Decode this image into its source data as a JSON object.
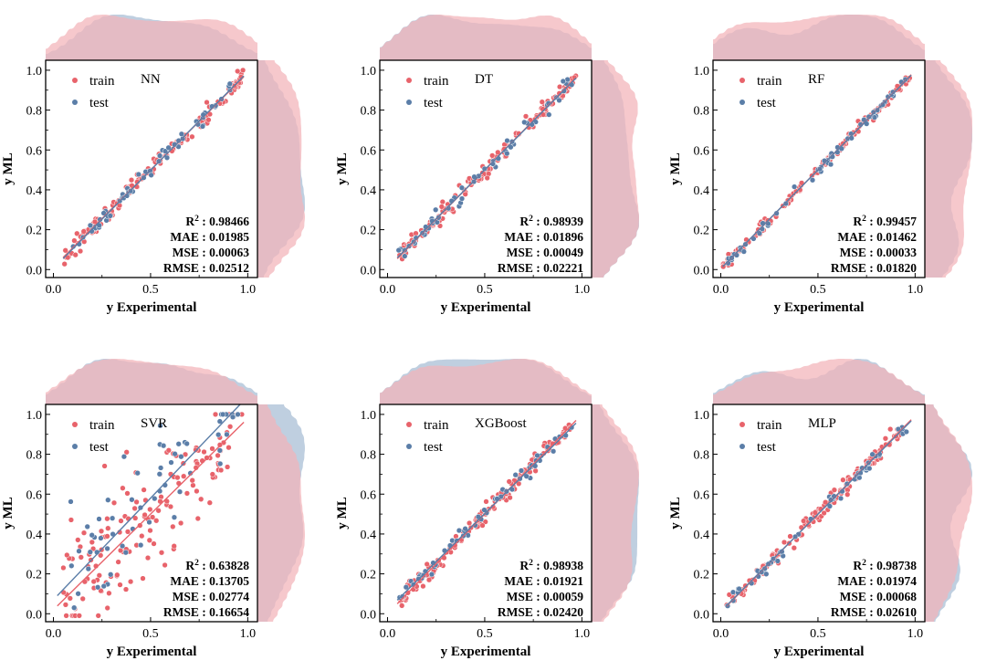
{
  "colors": {
    "train": "#e8636b",
    "test": "#5b7ea8",
    "train_fill": "#f2b3b8",
    "test_fill": "#a6bcd4",
    "overlap_fill": "#c3a3b6"
  },
  "legend": {
    "train": "train",
    "test": "test"
  },
  "axes_text": {
    "xlabel": "y Experimental",
    "ylabel": "y ML"
  },
  "chart_data": [
    {
      "type": "scatter",
      "model": "NN",
      "xlabel": "y Experimental",
      "ylabel": "y ML",
      "xlim": [
        -0.04,
        1.05
      ],
      "ylim": [
        -0.04,
        1.05
      ],
      "xticks": [
        "0.0",
        "0.5",
        "1.0"
      ],
      "yticks": [
        "0.0",
        "0.2",
        "0.4",
        "0.6",
        "0.8",
        "1.0"
      ],
      "legend_position": "top-left",
      "metrics": {
        "R2": "0.98466",
        "MAE": "0.01985",
        "MSE": "0.00063",
        "RMSE": "0.02512"
      },
      "fit": {
        "train": {
          "slope": 0.975,
          "intercept": 0.012
        },
        "test": {
          "slope": 0.985,
          "intercept": 0.006
        }
      },
      "series": [
        {
          "name": "train",
          "x_range": [
            0.05,
            0.98
          ],
          "scatter": 0.022,
          "n": 140
        },
        {
          "name": "test",
          "x_range": [
            0.08,
            0.92
          ],
          "scatter": 0.02,
          "n": 55
        }
      ]
    },
    {
      "type": "scatter",
      "model": "DT",
      "xlabel": "y Experimental",
      "ylabel": "y ML",
      "xlim": [
        -0.04,
        1.05
      ],
      "ylim": [
        -0.04,
        1.05
      ],
      "xticks": [
        "0.0",
        "0.5",
        "1.0"
      ],
      "yticks": [
        "0.0",
        "0.2",
        "0.4",
        "0.6",
        "0.8",
        "1.0"
      ],
      "legend_position": "top-left",
      "metrics": {
        "R2": "0.98939",
        "MAE": "0.01896",
        "MSE": "0.00049",
        "RMSE": "0.02221"
      },
      "fit": {
        "train": {
          "slope": 0.99,
          "intercept": 0.005
        },
        "test": {
          "slope": 0.98,
          "intercept": 0.01
        }
      },
      "series": [
        {
          "name": "train",
          "x_range": [
            0.06,
            0.97
          ],
          "scatter": 0.02,
          "n": 140
        },
        {
          "name": "test",
          "x_range": [
            0.05,
            0.96
          ],
          "scatter": 0.022,
          "n": 55
        }
      ]
    },
    {
      "type": "scatter",
      "model": "RF",
      "xlabel": "y Experimental",
      "ylabel": "y ML",
      "xlim": [
        -0.04,
        1.05
      ],
      "ylim": [
        -0.04,
        1.05
      ],
      "xticks": [
        "0.0",
        "0.5",
        "1.0"
      ],
      "yticks": [
        "0.0",
        "0.2",
        "0.4",
        "0.6",
        "0.8",
        "1.0"
      ],
      "legend_position": "top-left",
      "metrics": {
        "R2": "0.99457",
        "MAE": "0.01462",
        "MSE": "0.00033",
        "RMSE": "0.01820"
      },
      "fit": {
        "train": {
          "slope": 0.995,
          "intercept": 0.003
        },
        "test": {
          "slope": 0.99,
          "intercept": 0.005
        }
      },
      "series": [
        {
          "name": "train",
          "x_range": [
            0.01,
            0.98
          ],
          "scatter": 0.014,
          "n": 140
        },
        {
          "name": "test",
          "x_range": [
            0.03,
            0.96
          ],
          "scatter": 0.015,
          "n": 55
        }
      ]
    },
    {
      "type": "scatter",
      "model": "SVR",
      "xlabel": "y Experimental",
      "ylabel": "y ML",
      "xlim": [
        -0.04,
        1.05
      ],
      "ylim": [
        -0.04,
        1.05
      ],
      "xticks": [
        "0.0",
        "0.5",
        "1.0"
      ],
      "yticks": [
        "0.0",
        "0.2",
        "0.4",
        "0.6",
        "0.8",
        "1.0"
      ],
      "legend_position": "top-left",
      "metrics": {
        "R2": "0.63828",
        "MAE": "0.13705",
        "MSE": "0.02774",
        "RMSE": "0.16654"
      },
      "fit": {
        "train": {
          "slope": 0.96,
          "intercept": 0.02
        },
        "test": {
          "slope": 1.02,
          "intercept": 0.07
        }
      },
      "series": [
        {
          "name": "train",
          "x_range": [
            0.05,
            0.98
          ],
          "scatter": 0.16,
          "n": 150
        },
        {
          "name": "test",
          "x_range": [
            0.02,
            0.95
          ],
          "scatter": 0.15,
          "n": 60
        }
      ]
    },
    {
      "type": "scatter",
      "model": "XGBoost",
      "xlabel": "y Experimental",
      "ylabel": "y ML",
      "xlim": [
        -0.04,
        1.05
      ],
      "ylim": [
        -0.04,
        1.05
      ],
      "xticks": [
        "0.0",
        "0.5",
        "1.0"
      ],
      "yticks": [
        "0.0",
        "0.2",
        "0.4",
        "0.6",
        "0.8",
        "1.0"
      ],
      "legend_position": "top-left",
      "metrics": {
        "R2": "0.98938",
        "MAE": "0.01921",
        "MSE": "0.00059",
        "RMSE": "0.02420"
      },
      "fit": {
        "train": {
          "slope": 1.0,
          "intercept": 0.0
        },
        "test": {
          "slope": 0.965,
          "intercept": 0.02
        }
      },
      "series": [
        {
          "name": "train",
          "x_range": [
            0.05,
            0.97
          ],
          "scatter": 0.02,
          "n": 140
        },
        {
          "name": "test",
          "x_range": [
            0.05,
            0.95
          ],
          "scatter": 0.02,
          "n": 55
        }
      ]
    },
    {
      "type": "scatter",
      "model": "MLP",
      "xlabel": "y Experimental",
      "ylabel": "y ML",
      "xlim": [
        -0.04,
        1.05
      ],
      "ylim": [
        -0.04,
        1.05
      ],
      "xticks": [
        "0.0",
        "0.5",
        "1.0"
      ],
      "yticks": [
        "0.0",
        "0.2",
        "0.4",
        "0.6",
        "0.8",
        "1.0"
      ],
      "legend_position": "top-left",
      "metrics": {
        "R2": "0.98738",
        "MAE": "0.01974",
        "MSE": "0.00068",
        "RMSE": "0.02610"
      },
      "fit": {
        "train": {
          "slope": 0.985,
          "intercept": 0.008
        },
        "test": {
          "slope": 0.975,
          "intercept": 0.012
        }
      },
      "series": [
        {
          "name": "train",
          "x_range": [
            0.03,
            0.97
          ],
          "scatter": 0.02,
          "n": 140
        },
        {
          "name": "test",
          "x_range": [
            0.03,
            0.98
          ],
          "scatter": 0.02,
          "n": 55
        }
      ]
    }
  ]
}
